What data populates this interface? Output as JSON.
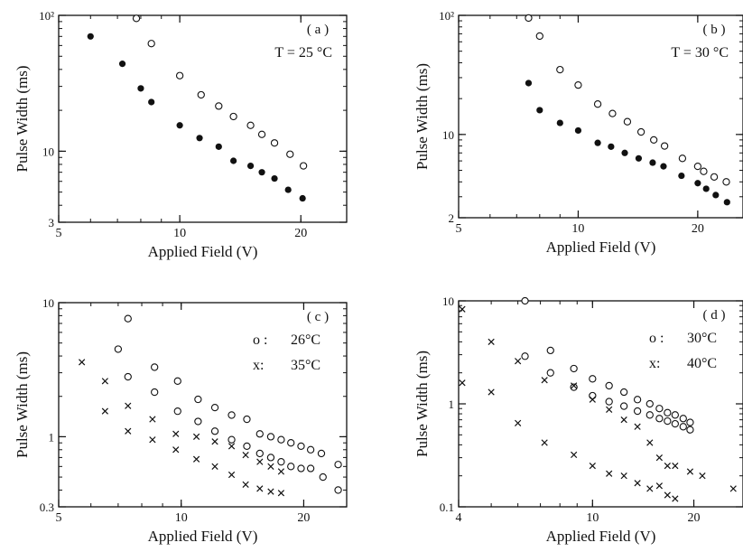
{
  "chart_data": [
    {
      "type": "scatter",
      "panel_label": "( a )",
      "annotation": "T = 25 °C",
      "xlabel": "Applied Field (V)",
      "ylabel": "Pulse Width (ms)",
      "xscale": "log",
      "yscale": "log",
      "xlim": [
        5,
        26
      ],
      "ylim": [
        3,
        100
      ],
      "xticks": [
        5,
        10,
        20
      ],
      "xtick_labels": [
        "5",
        "10",
        "20"
      ],
      "yticks": [
        3,
        10,
        100
      ],
      "ytick_labels": [
        "3",
        "10",
        "10²"
      ],
      "series": [
        {
          "marker": "filled-circle",
          "points": [
            [
              6,
              70
            ],
            [
              7.2,
              44
            ],
            [
              8,
              29
            ],
            [
              8.5,
              23
            ],
            [
              10,
              15.5
            ],
            [
              11.2,
              12.5
            ],
            [
              12.5,
              10.8
            ],
            [
              13.6,
              8.5
            ],
            [
              15,
              7.8
            ],
            [
              16,
              7
            ],
            [
              17.2,
              6.3
            ],
            [
              18.6,
              5.2
            ],
            [
              20.2,
              4.5
            ]
          ]
        },
        {
          "marker": "open-circle",
          "points": [
            [
              7.8,
              95
            ],
            [
              8.5,
              62
            ],
            [
              10,
              36
            ],
            [
              11.3,
              26
            ],
            [
              12.5,
              21.5
            ],
            [
              13.6,
              18
            ],
            [
              15,
              15.5
            ],
            [
              16,
              13.3
            ],
            [
              17.2,
              11.5
            ],
            [
              18.8,
              9.5
            ],
            [
              20.3,
              7.8
            ]
          ]
        }
      ]
    },
    {
      "type": "scatter",
      "panel_label": "( b )",
      "annotation": "T = 30 °C",
      "xlabel": "Applied Field (V)",
      "ylabel": "Pulse Width (ms)",
      "xscale": "log",
      "yscale": "log",
      "xlim": [
        5,
        26
      ],
      "ylim": [
        2,
        100
      ],
      "xticks": [
        5,
        10,
        20
      ],
      "xtick_labels": [
        "5",
        "10",
        "20"
      ],
      "yticks": [
        2,
        10,
        100
      ],
      "ytick_labels": [
        "2",
        "10",
        "10²"
      ],
      "series": [
        {
          "marker": "filled-circle",
          "points": [
            [
              7.5,
              27
            ],
            [
              8,
              16
            ],
            [
              9,
              12.5
            ],
            [
              10,
              10.8
            ],
            [
              11.2,
              8.5
            ],
            [
              12.1,
              7.9
            ],
            [
              13.1,
              7
            ],
            [
              14.2,
              6.3
            ],
            [
              15.4,
              5.8
            ],
            [
              16.4,
              5.4
            ],
            [
              18.2,
              4.5
            ],
            [
              20,
              3.9
            ],
            [
              21,
              3.5
            ],
            [
              22.2,
              3.1
            ],
            [
              23.7,
              2.7
            ]
          ]
        },
        {
          "marker": "open-circle",
          "points": [
            [
              7.5,
              95
            ],
            [
              8,
              67
            ],
            [
              9,
              35
            ],
            [
              10,
              26
            ],
            [
              11.2,
              18
            ],
            [
              12.2,
              15
            ],
            [
              13.3,
              12.8
            ],
            [
              14.4,
              10.5
            ],
            [
              15.5,
              9
            ],
            [
              16.5,
              8
            ],
            [
              18.3,
              6.3
            ],
            [
              20,
              5.4
            ],
            [
              20.7,
              4.9
            ],
            [
              22,
              4.4
            ],
            [
              23.6,
              4
            ]
          ]
        }
      ]
    },
    {
      "type": "scatter",
      "panel_label": "( c )",
      "legend": [
        {
          "symbol": "o :",
          "text": "26°C"
        },
        {
          "symbol": "x:",
          "text": "35°C"
        }
      ],
      "xlabel": "Applied Field (V)",
      "ylabel": "Pulse Width (ms)",
      "xscale": "log",
      "yscale": "log",
      "xlim": [
        5,
        25.5
      ],
      "ylim": [
        0.3,
        10
      ],
      "xticks": [
        5,
        10,
        20
      ],
      "xtick_labels": [
        "5",
        "10",
        "20"
      ],
      "yticks": [
        0.3,
        1,
        10
      ],
      "ytick_labels": [
        "0.3",
        "1",
        "10"
      ],
      "series": [
        {
          "name": "26°C",
          "marker": "open-circle",
          "points": [
            [
              7.4,
              7.6
            ],
            [
              7,
              4.5
            ],
            [
              7.4,
              2.8
            ],
            [
              8.6,
              3.3
            ],
            [
              8.6,
              2.15
            ],
            [
              9.8,
              2.6
            ],
            [
              9.8,
              1.55
            ],
            [
              11,
              1.9
            ],
            [
              11,
              1.3
            ],
            [
              12.1,
              1.65
            ],
            [
              12.1,
              1.1
            ],
            [
              13.3,
              1.45
            ],
            [
              13.3,
              0.95
            ],
            [
              14.5,
              1.35
            ],
            [
              14.5,
              0.85
            ],
            [
              15.6,
              1.05
            ],
            [
              15.6,
              0.75
            ],
            [
              16.6,
              1
            ],
            [
              16.6,
              0.7
            ],
            [
              17.6,
              0.95
            ],
            [
              17.6,
              0.65
            ],
            [
              18.6,
              0.9
            ],
            [
              18.6,
              0.6
            ],
            [
              19.7,
              0.85
            ],
            [
              19.7,
              0.58
            ],
            [
              20.8,
              0.8
            ],
            [
              20.8,
              0.58
            ],
            [
              22.1,
              0.75
            ],
            [
              22.3,
              0.5
            ],
            [
              24.3,
              0.62
            ],
            [
              24.3,
              0.4
            ]
          ]
        },
        {
          "name": "35°C",
          "marker": "x",
          "points": [
            [
              5.7,
              3.6
            ],
            [
              6.5,
              2.6
            ],
            [
              6.5,
              1.55
            ],
            [
              7.4,
              1.7
            ],
            [
              7.4,
              1.1
            ],
            [
              8.5,
              1.35
            ],
            [
              8.5,
              0.95
            ],
            [
              9.7,
              1.05
            ],
            [
              9.7,
              0.8
            ],
            [
              10.9,
              1
            ],
            [
              10.9,
              0.68
            ],
            [
              12.1,
              0.92
            ],
            [
              12.1,
              0.6
            ],
            [
              13.3,
              0.85
            ],
            [
              13.3,
              0.52
            ],
            [
              14.4,
              0.73
            ],
            [
              14.4,
              0.44
            ],
            [
              15.6,
              0.65
            ],
            [
              15.6,
              0.41
            ],
            [
              16.6,
              0.6
            ],
            [
              16.6,
              0.39
            ],
            [
              17.6,
              0.55
            ],
            [
              17.6,
              0.38
            ]
          ]
        }
      ]
    },
    {
      "type": "scatter",
      "panel_label": "( d )",
      "legend": [
        {
          "symbol": "o :",
          "text": "30°C"
        },
        {
          "symbol": "x:",
          "text": "40°C"
        }
      ],
      "xlabel": "Applied Field (V)",
      "ylabel": "Pulse Width (ms)",
      "xscale": "log",
      "yscale": "log",
      "xlim": [
        4,
        28
      ],
      "ylim": [
        0.1,
        10
      ],
      "xticks": [
        4,
        10,
        20
      ],
      "xtick_labels": [
        "4",
        "10",
        "20"
      ],
      "yticks": [
        0.1,
        1,
        10
      ],
      "ytick_labels": [
        "0.1",
        "1",
        "10"
      ],
      "series": [
        {
          "name": "30°C",
          "marker": "open-circle",
          "points": [
            [
              6.3,
              10
            ],
            [
              6.3,
              2.9
            ],
            [
              7.5,
              3.3
            ],
            [
              7.5,
              2
            ],
            [
              8.8,
              2.2
            ],
            [
              8.8,
              1.45
            ],
            [
              10,
              1.75
            ],
            [
              10,
              1.2
            ],
            [
              11.2,
              1.5
            ],
            [
              11.2,
              1.05
            ],
            [
              12.4,
              1.3
            ],
            [
              12.4,
              0.95
            ],
            [
              13.6,
              1.1
            ],
            [
              13.6,
              0.85
            ],
            [
              14.8,
              1
            ],
            [
              14.8,
              0.78
            ],
            [
              15.8,
              0.9
            ],
            [
              15.8,
              0.72
            ],
            [
              16.7,
              0.82
            ],
            [
              16.7,
              0.68
            ],
            [
              17.6,
              0.78
            ],
            [
              17.6,
              0.64
            ],
            [
              18.6,
              0.72
            ],
            [
              18.6,
              0.6
            ],
            [
              19.5,
              0.66
            ],
            [
              19.5,
              0.56
            ]
          ]
        },
        {
          "name": "40°C",
          "marker": "x",
          "points": [
            [
              4.1,
              8.3
            ],
            [
              4.1,
              1.6
            ],
            [
              5,
              4
            ],
            [
              5,
              1.3
            ],
            [
              6,
              2.6
            ],
            [
              6,
              0.65
            ],
            [
              7.2,
              1.7
            ],
            [
              7.2,
              0.42
            ],
            [
              8.8,
              1.5
            ],
            [
              8.8,
              0.32
            ],
            [
              10,
              1.1
            ],
            [
              10,
              0.25
            ],
            [
              11.2,
              0.88
            ],
            [
              11.2,
              0.21
            ],
            [
              12.4,
              0.7
            ],
            [
              12.4,
              0.2
            ],
            [
              13.6,
              0.6
            ],
            [
              13.6,
              0.17
            ],
            [
              14.8,
              0.42
            ],
            [
              14.8,
              0.15
            ],
            [
              15.8,
              0.3
            ],
            [
              15.8,
              0.16
            ],
            [
              16.7,
              0.25
            ],
            [
              16.7,
              0.13
            ],
            [
              17.6,
              0.25
            ],
            [
              17.6,
              0.12
            ],
            [
              19.5,
              0.22
            ],
            [
              21.2,
              0.2
            ],
            [
              26.2,
              0.15
            ]
          ]
        }
      ]
    }
  ]
}
